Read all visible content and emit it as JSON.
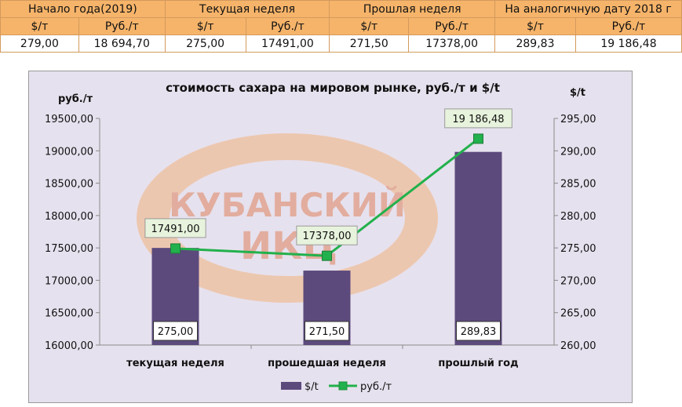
{
  "table": {
    "headers": [
      "Начало года(2019)",
      "Текущая неделя",
      "Прошлая неделя",
      "На аналогичную дату 2018 г"
    ],
    "subheaders": [
      "$/т",
      "Руб./т",
      "$/т",
      "Руб./т",
      "$/т",
      "Руб./т",
      "$/т",
      "Руб./т"
    ],
    "values": [
      "279,00",
      "18 694,70",
      "275,00",
      "17491,00",
      "271,50",
      "17378,00",
      "289,83",
      "19 186,48"
    ]
  },
  "watermark": {
    "line1": "КУБАНСКИЙ",
    "line2": "ИКЦ"
  },
  "chart_data": {
    "type": "bar",
    "title": "стоимость сахара на мировом рынке, руб./т и $/t",
    "ylabel_left": "руб./т",
    "ylabel_right": "$/t",
    "categories": [
      "текущая неделя",
      "прошедшая неделя",
      "прошлый год"
    ],
    "y_left_ticks": [
      "19500,00",
      "19000,00",
      "18500,00",
      "18000,00",
      "17500,00",
      "17000,00",
      "16500,00",
      "16000,00"
    ],
    "y_right_ticks": [
      "295,00",
      "290,00",
      "285,00",
      "280,00",
      "275,00",
      "270,00",
      "265,00",
      "260,00"
    ],
    "y_left_range": [
      16000,
      19500
    ],
    "y_right_range": [
      260,
      295
    ],
    "series": [
      {
        "name": "$/t",
        "type": "bar",
        "axis": "right",
        "values": [
          275.0,
          271.5,
          289.83
        ],
        "labels": [
          "275,00",
          "271,50",
          "289,83"
        ],
        "color": "#5c4a7d"
      },
      {
        "name": "руб./т",
        "type": "line",
        "axis": "left",
        "values": [
          17491.0,
          17378.0,
          19186.48
        ],
        "labels": [
          "17491,00",
          "17378,00",
          "19 186,48"
        ],
        "color": "#22b14c"
      }
    ],
    "legend_position": "bottom",
    "plot_background": "#e6e1ee",
    "grid": false
  }
}
